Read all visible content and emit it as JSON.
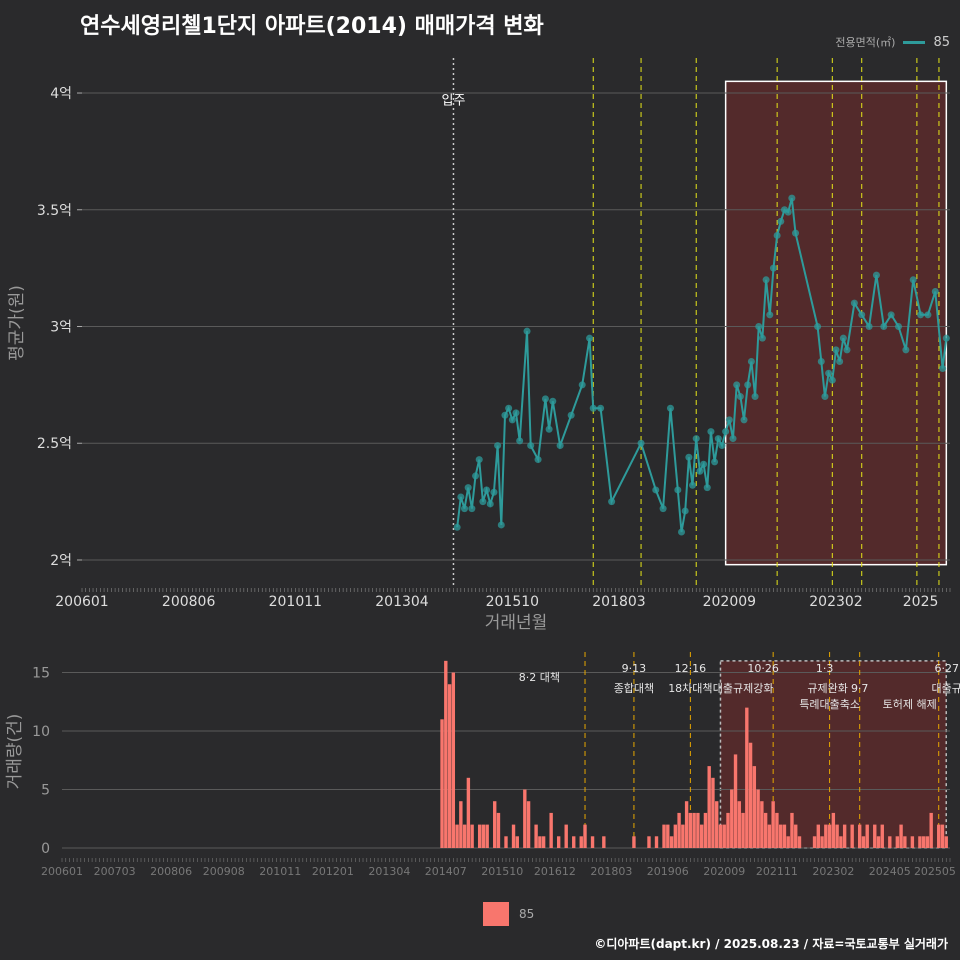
{
  "title": "연수세영리첼1단지 아파트(2014) 매매가격 변화",
  "legend": {
    "title": "전용면적(㎡)",
    "series_name": "85"
  },
  "credit": "©디아파트(dapt.kr) / 2025.08.23 / 자료=국토교통부 실거래가",
  "colors": {
    "background": "#2a2a2c",
    "price_line": "#2e9b9b",
    "volume_bar": "#f8766d",
    "highlight_fill": "#5a2a2c",
    "policy_line_yellow": "#e6e619",
    "policy_line_orange": "#e6a700"
  },
  "chart_data": [
    {
      "type": "line",
      "title": "",
      "xlabel": "거래년월",
      "ylabel": "평균가(원)",
      "x_tick_labels": [
        "200601",
        "200806",
        "201011",
        "201304",
        "201510",
        "201803",
        "202009",
        "202302",
        "2025"
      ],
      "y_tick_labels": [
        "2억",
        "2.5억",
        "3억",
        "3.5억",
        "4억"
      ],
      "ylim_eok": [
        1.88,
        4.15
      ],
      "xlim": [
        "2006-01",
        "2025-09"
      ],
      "annotation": {
        "label": "입주",
        "x": "2014-06"
      },
      "highlight_range": [
        "2020-08",
        "2025-08"
      ],
      "policy_dates": [
        "2017-08",
        "2018-09",
        "2019-12",
        "2021-10",
        "2023-01",
        "2023-09",
        "2024-12",
        "2025-06"
      ],
      "series": [
        {
          "name": "85",
          "points": [
            [
              "2014-07",
              2.14
            ],
            [
              "2014-08",
              2.27
            ],
            [
              "2014-09",
              2.22
            ],
            [
              "2014-10",
              2.31
            ],
            [
              "2014-11",
              2.22
            ],
            [
              "2014-12",
              2.36
            ],
            [
              "2015-01",
              2.43
            ],
            [
              "2015-02",
              2.25
            ],
            [
              "2015-03",
              2.3
            ],
            [
              "2015-04",
              2.24
            ],
            [
              "2015-05",
              2.29
            ],
            [
              "2015-06",
              2.49
            ],
            [
              "2015-07",
              2.15
            ],
            [
              "2015-08",
              2.62
            ],
            [
              "2015-09",
              2.65
            ],
            [
              "2015-10",
              2.6
            ],
            [
              "2015-11",
              2.63
            ],
            [
              "2015-12",
              2.51
            ],
            [
              "2016-02",
              2.98
            ],
            [
              "2016-03",
              2.49
            ],
            [
              "2016-05",
              2.43
            ],
            [
              "2016-07",
              2.69
            ],
            [
              "2016-08",
              2.56
            ],
            [
              "2016-09",
              2.68
            ],
            [
              "2016-11",
              2.49
            ],
            [
              "2017-02",
              2.62
            ],
            [
              "2017-05",
              2.75
            ],
            [
              "2017-07",
              2.95
            ],
            [
              "2017-08",
              2.65
            ],
            [
              "2017-10",
              2.65
            ],
            [
              "2018-01",
              2.25
            ],
            [
              "2018-09",
              2.5
            ],
            [
              "2019-01",
              2.3
            ],
            [
              "2019-03",
              2.22
            ],
            [
              "2019-05",
              2.65
            ],
            [
              "2019-07",
              2.3
            ],
            [
              "2019-08",
              2.12
            ],
            [
              "2019-09",
              2.21
            ],
            [
              "2019-10",
              2.44
            ],
            [
              "2019-11",
              2.32
            ],
            [
              "2019-12",
              2.52
            ],
            [
              "2020-01",
              2.38
            ],
            [
              "2020-02",
              2.41
            ],
            [
              "2020-03",
              2.31
            ],
            [
              "2020-04",
              2.55
            ],
            [
              "2020-05",
              2.42
            ],
            [
              "2020-06",
              2.52
            ],
            [
              "2020-07",
              2.49
            ],
            [
              "2020-08",
              2.55
            ],
            [
              "2020-09",
              2.6
            ],
            [
              "2020-10",
              2.52
            ],
            [
              "2020-11",
              2.75
            ],
            [
              "2020-12",
              2.7
            ],
            [
              "2021-01",
              2.6
            ],
            [
              "2021-02",
              2.75
            ],
            [
              "2021-03",
              2.85
            ],
            [
              "2021-04",
              2.7
            ],
            [
              "2021-05",
              3.0
            ],
            [
              "2021-06",
              2.95
            ],
            [
              "2021-07",
              3.2
            ],
            [
              "2021-08",
              3.05
            ],
            [
              "2021-09",
              3.25
            ],
            [
              "2021-10",
              3.39
            ],
            [
              "2021-11",
              3.45
            ],
            [
              "2021-12",
              3.5
            ],
            [
              "2022-01",
              3.49
            ],
            [
              "2022-02",
              3.55
            ],
            [
              "2022-03",
              3.4
            ],
            [
              "2022-09",
              3.0
            ],
            [
              "2022-10",
              2.85
            ],
            [
              "2022-11",
              2.7
            ],
            [
              "2022-12",
              2.8
            ],
            [
              "2023-01",
              2.77
            ],
            [
              "2023-02",
              2.9
            ],
            [
              "2023-03",
              2.85
            ],
            [
              "2023-04",
              2.95
            ],
            [
              "2023-05",
              2.9
            ],
            [
              "2023-07",
              3.1
            ],
            [
              "2023-09",
              3.05
            ],
            [
              "2023-11",
              3.0
            ],
            [
              "2024-01",
              3.22
            ],
            [
              "2024-03",
              3.0
            ],
            [
              "2024-05",
              3.05
            ],
            [
              "2024-07",
              3.0
            ],
            [
              "2024-09",
              2.9
            ],
            [
              "2024-11",
              3.2
            ],
            [
              "2025-01",
              3.05
            ],
            [
              "2025-03",
              3.05
            ],
            [
              "2025-05",
              3.15
            ],
            [
              "2025-07",
              2.82
            ],
            [
              "2025-08",
              2.95
            ]
          ]
        }
      ]
    },
    {
      "type": "bar",
      "title": "",
      "xlabel": "",
      "ylabel": "거래량(건)",
      "x_tick_labels": [
        "200601",
        "200703",
        "200806",
        "200908",
        "201011",
        "201201",
        "201304",
        "201407",
        "201510",
        "201612",
        "201803",
        "201906",
        "202009",
        "202111",
        "202302",
        "202405",
        "202505"
      ],
      "y_tick_labels": [
        "0",
        "5",
        "10",
        "15"
      ],
      "ylim": [
        0,
        16.5
      ],
      "highlight_range": [
        "2020-08",
        "2025-08"
      ],
      "policy_events": [
        {
          "date": "2017-08",
          "label": "8·2 대책"
        },
        {
          "date": "2018-09",
          "label": "9·13 종합대책"
        },
        {
          "date": "2019-12",
          "label": "12·16 18차대책"
        },
        {
          "date": "2021-10",
          "label": "10·26 대출규제강화"
        },
        {
          "date": "2023-01",
          "label": "1·3 규제완화"
        },
        {
          "date": "2023-09",
          "label": "9·7 특례대출축소"
        },
        {
          "date": "2025-06",
          "label": "6·27 대출규"
        }
      ],
      "policy_texts": {
        "p1_date": "8·2",
        "p1_name": "대책",
        "p2_date": "9·13",
        "p2_name": "종합대책",
        "p3_date": "12·16",
        "p3_name": "18차대책",
        "p4_date": "10·26",
        "p4_name": "대출규제강화",
        "p5_date": "1·3",
        "p5_name": "규제완화",
        "p6_date": "9·7",
        "p6_name": "특례대출축소",
        "p7_name": "토허제 해제",
        "p8_date": "6·27",
        "p8_name": "대출규"
      },
      "series": [
        {
          "name": "85",
          "points": [
            [
              "2014-06",
              11
            ],
            [
              "2014-07",
              16
            ],
            [
              "2014-08",
              14
            ],
            [
              "2014-09",
              15
            ],
            [
              "2014-10",
              2
            ],
            [
              "2014-11",
              4
            ],
            [
              "2014-12",
              2
            ],
            [
              "2015-01",
              6
            ],
            [
              "2015-02",
              2
            ],
            [
              "2015-04",
              2
            ],
            [
              "2015-05",
              2
            ],
            [
              "2015-06",
              2
            ],
            [
              "2015-08",
              4
            ],
            [
              "2015-09",
              3
            ],
            [
              "2015-11",
              1
            ],
            [
              "2016-01",
              2
            ],
            [
              "2016-02",
              1
            ],
            [
              "2016-04",
              5
            ],
            [
              "2016-05",
              4
            ],
            [
              "2016-07",
              2
            ],
            [
              "2016-08",
              1
            ],
            [
              "2016-09",
              1
            ],
            [
              "2016-11",
              3
            ],
            [
              "2017-01",
              1
            ],
            [
              "2017-03",
              2
            ],
            [
              "2017-05",
              1
            ],
            [
              "2017-07",
              1
            ],
            [
              "2017-08",
              2
            ],
            [
              "2017-10",
              1
            ],
            [
              "2018-01",
              1
            ],
            [
              "2018-09",
              1
            ],
            [
              "2019-01",
              1
            ],
            [
              "2019-03",
              1
            ],
            [
              "2019-05",
              2
            ],
            [
              "2019-06",
              2
            ],
            [
              "2019-07",
              1
            ],
            [
              "2019-08",
              2
            ],
            [
              "2019-09",
              3
            ],
            [
              "2019-10",
              2
            ],
            [
              "2019-11",
              4
            ],
            [
              "2019-12",
              3
            ],
            [
              "2020-01",
              3
            ],
            [
              "2020-02",
              3
            ],
            [
              "2020-03",
              2
            ],
            [
              "2020-04",
              3
            ],
            [
              "2020-05",
              7
            ],
            [
              "2020-06",
              6
            ],
            [
              "2020-07",
              4
            ],
            [
              "2020-08",
              2
            ],
            [
              "2020-09",
              2
            ],
            [
              "2020-10",
              3
            ],
            [
              "2020-11",
              5
            ],
            [
              "2020-12",
              8
            ],
            [
              "2021-01",
              4
            ],
            [
              "2021-02",
              3
            ],
            [
              "2021-03",
              12
            ],
            [
              "2021-04",
              9
            ],
            [
              "2021-05",
              7
            ],
            [
              "2021-06",
              5
            ],
            [
              "2021-07",
              4
            ],
            [
              "2021-08",
              3
            ],
            [
              "2021-09",
              2
            ],
            [
              "2021-10",
              4
            ],
            [
              "2021-11",
              3
            ],
            [
              "2021-12",
              2
            ],
            [
              "2022-01",
              2
            ],
            [
              "2022-02",
              1
            ],
            [
              "2022-03",
              3
            ],
            [
              "2022-04",
              2
            ],
            [
              "2022-05",
              1
            ],
            [
              "2022-09",
              1
            ],
            [
              "2022-10",
              2
            ],
            [
              "2022-11",
              1
            ],
            [
              "2022-12",
              2
            ],
            [
              "2023-01",
              2
            ],
            [
              "2023-02",
              3
            ],
            [
              "2023-03",
              2
            ],
            [
              "2023-04",
              1
            ],
            [
              "2023-05",
              2
            ],
            [
              "2023-07",
              2
            ],
            [
              "2023-09",
              2
            ],
            [
              "2023-10",
              1
            ],
            [
              "2023-11",
              2
            ],
            [
              "2024-01",
              2
            ],
            [
              "2024-02",
              1
            ],
            [
              "2024-03",
              2
            ],
            [
              "2024-05",
              1
            ],
            [
              "2024-07",
              1
            ],
            [
              "2024-08",
              2
            ],
            [
              "2024-09",
              1
            ],
            [
              "2024-11",
              1
            ],
            [
              "2025-01",
              1
            ],
            [
              "2025-02",
              1
            ],
            [
              "2025-03",
              1
            ],
            [
              "2025-04",
              3
            ],
            [
              "2025-06",
              2
            ],
            [
              "2025-07",
              2
            ],
            [
              "2025-08",
              1
            ]
          ]
        }
      ]
    }
  ]
}
